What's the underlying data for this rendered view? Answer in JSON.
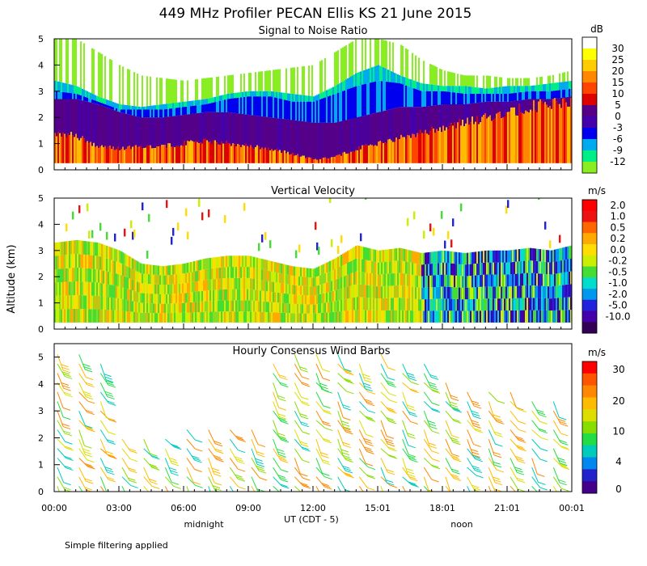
{
  "figure": {
    "title": "449 MHz Profiler PECAN Ellis KS 21 June 2015",
    "ylabel": "Altitude (km)",
    "xlabel": "UT  (CDT - 5)",
    "xlabel_sub": [
      "midnight",
      "noon"
    ],
    "footnote": "Simple filtering applied"
  },
  "chart_data": [
    {
      "type": "heatmap",
      "title": "Signal to Noise Ratio",
      "colorbar_unit": "dB",
      "ylim": [
        0,
        5
      ],
      "yticks": [
        "0",
        "1",
        "2",
        "3",
        "4",
        "5"
      ],
      "xticks": [
        "00:00",
        "03:00",
        "06:00",
        "09:00",
        "12:00",
        "15:01",
        "18:01",
        "21:01",
        "00:01"
      ],
      "colorbar": [
        {
          "label": "30",
          "color": "#ffffff"
        },
        {
          "label": "25",
          "color": "#ffff00"
        },
        {
          "label": "20",
          "color": "#ffcc00"
        },
        {
          "label": "15",
          "color": "#ff8800"
        },
        {
          "label": "10",
          "color": "#ff4400"
        },
        {
          "label": "5",
          "color": "#dd0000"
        },
        {
          "label": "0",
          "color": "#550088"
        },
        {
          "label": "-3",
          "color": "#4400aa"
        },
        {
          "label": "-6",
          "color": "#0000ee"
        },
        {
          "label": "-9",
          "color": "#00aaee"
        },
        {
          "label": "-12",
          "color": "#00ee88"
        }
      ],
      "colorbar_bottom": "#88ee22",
      "layer_tops_km": {
        "hours": [
          0,
          1,
          2,
          3,
          4,
          5,
          6,
          7,
          8,
          9,
          10,
          11,
          12,
          13,
          14,
          15,
          16,
          17,
          18,
          19,
          20,
          21,
          22,
          23,
          24
        ],
        "strong_echo": [
          1.4,
          1.3,
          0.9,
          0.8,
          0.9,
          0.9,
          1.0,
          1.1,
          1.0,
          0.9,
          0.8,
          0.6,
          0.4,
          0.5,
          0.8,
          1.0,
          1.2,
          1.4,
          1.6,
          1.8,
          2.0,
          2.2,
          2.4,
          2.5,
          2.6
        ],
        "purple": [
          2.7,
          2.7,
          2.5,
          2.2,
          2.0,
          2.0,
          2.1,
          2.2,
          2.2,
          2.1,
          2.0,
          1.9,
          1.8,
          1.8,
          2.0,
          2.2,
          2.4,
          2.4,
          2.5,
          2.5,
          2.6,
          2.6,
          2.7,
          2.7,
          2.8
        ],
        "blue": [
          3.0,
          2.9,
          2.6,
          2.3,
          2.3,
          2.3,
          2.4,
          2.5,
          2.7,
          2.8,
          2.8,
          2.6,
          2.6,
          2.9,
          3.2,
          3.4,
          3.3,
          3.0,
          3.0,
          2.9,
          2.9,
          2.9,
          3.0,
          3.0,
          3.1
        ],
        "cyan": [
          3.4,
          3.2,
          2.8,
          2.5,
          2.4,
          2.5,
          2.6,
          2.7,
          2.9,
          3.0,
          3.0,
          2.9,
          2.8,
          3.2,
          3.7,
          4.0,
          3.6,
          3.3,
          3.2,
          3.2,
          3.1,
          3.2,
          3.2,
          3.3,
          3.4
        ],
        "green_sparse": [
          5.0,
          5.0,
          4.5,
          4.0,
          3.6,
          3.5,
          3.4,
          3.5,
          3.6,
          3.7,
          3.8,
          3.9,
          4.0,
          4.5,
          5.0,
          5.0,
          4.8,
          4.2,
          3.8,
          3.6,
          3.6,
          3.5,
          3.5,
          3.6,
          3.8
        ]
      }
    },
    {
      "type": "heatmap",
      "title": "Vertical Velocity",
      "colorbar_unit": "m/s",
      "ylim": [
        0,
        5
      ],
      "yticks": [
        "0",
        "1",
        "2",
        "3",
        "4",
        "5"
      ],
      "colorbar": [
        {
          "label": "2.0",
          "color": "#ee1111"
        },
        {
          "label": "1.0",
          "color": "#ff6600"
        },
        {
          "label": "0.5",
          "color": "#ffaa00"
        },
        {
          "label": "0.2",
          "color": "#ffdd00"
        },
        {
          "label": "0.0",
          "color": "#ccee00"
        },
        {
          "label": "-0.2",
          "color": "#44dd33"
        },
        {
          "label": "-0.5",
          "color": "#00ddcc"
        },
        {
          "label": "-1.0",
          "color": "#0099ee"
        },
        {
          "label": "-2.0",
          "color": "#2222dd"
        },
        {
          "label": "-5.0",
          "color": "#4400aa"
        },
        {
          "label": "-10.0",
          "color": "#330055"
        }
      ],
      "colorbar_top": "#ff0000",
      "echo_top_km": {
        "hours": [
          0,
          1,
          2,
          3,
          4,
          5,
          6,
          7,
          8,
          9,
          10,
          11,
          12,
          13,
          14,
          15,
          16,
          17,
          18,
          19,
          20,
          21,
          22,
          23,
          24
        ],
        "top": [
          3.3,
          3.4,
          3.3,
          3.0,
          2.5,
          2.4,
          2.5,
          2.7,
          2.8,
          2.8,
          2.6,
          2.4,
          2.3,
          2.7,
          3.2,
          3.0,
          3.1,
          2.9,
          3.0,
          2.9,
          3.0,
          3.0,
          3.1,
          3.0,
          3.2
        ]
      }
    },
    {
      "type": "wind_barbs",
      "title": "Hourly Consensus Wind Barbs",
      "colorbar_unit": "m/s",
      "ylim": [
        0,
        5.5
      ],
      "yticks": [
        "0",
        "1",
        "2",
        "3",
        "4",
        "5"
      ],
      "colorbar": [
        {
          "label": "30",
          "color": "#ff0000"
        },
        {
          "label": "20",
          "color": "#ffaa00"
        },
        {
          "label": "10",
          "color": "#77dd00"
        },
        {
          "label": "4",
          "color": "#00aaee"
        },
        {
          "label": "0",
          "color": "#440088"
        }
      ],
      "colorbar_stops": [
        "#ff0000",
        "#ff5500",
        "#ff8800",
        "#ffbb00",
        "#dddd00",
        "#88dd00",
        "#22dd44",
        "#00ccbb",
        "#0088ee",
        "#2222cc",
        "#440088"
      ],
      "barb_heights_km": [
        0.2,
        0.55,
        0.9,
        1.25,
        1.6,
        1.95,
        2.3,
        2.65,
        3.0,
        3.35,
        3.7,
        4.05,
        4.4,
        4.75,
        5.1
      ],
      "barb_tops_km": {
        "hours": [
          0,
          1,
          2,
          3,
          4,
          5,
          6,
          7,
          8,
          9,
          10,
          11,
          12,
          13,
          14,
          15,
          16,
          17,
          18,
          19,
          20,
          21,
          22,
          23,
          24
        ],
        "top": [
          5.2,
          5.2,
          5.0,
          2.2,
          2.0,
          2.1,
          2.3,
          2.6,
          2.5,
          2.6,
          5.0,
          5.1,
          5.2,
          5.1,
          5.0,
          5.1,
          5.0,
          4.8,
          4.2,
          4.0,
          3.8,
          3.7,
          3.5,
          3.4,
          3.5
        ]
      }
    }
  ]
}
